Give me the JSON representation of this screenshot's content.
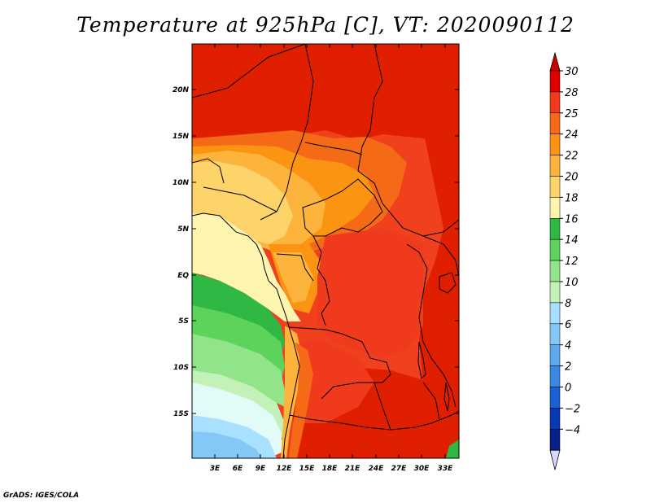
{
  "title": "Temperature at 925hPa [C], VT: 2020090112",
  "credit": "GrADS: IGES/COLA",
  "map": {
    "lat_labels": [
      "20N",
      "15N",
      "10N",
      "5N",
      "EQ",
      "5S",
      "10S",
      "15S"
    ],
    "lon_labels": [
      "3E",
      "6E",
      "9E",
      "12E",
      "15E",
      "18E",
      "21E",
      "24E",
      "27E",
      "30E",
      "33E"
    ]
  },
  "colorbar": {
    "levels": [
      "30",
      "28",
      "25",
      "24",
      "22",
      "20",
      "18",
      "16",
      "14",
      "12",
      "10",
      "8",
      "6",
      "4",
      "2",
      "0",
      "−2",
      "−4"
    ],
    "colors": [
      "#e00000",
      "#f03a1e",
      "#f56a16",
      "#fa9412",
      "#fcb43c",
      "#fdd46a",
      "#fef6b0",
      "#2fb843",
      "#5ed35c",
      "#92e48a",
      "#c3f2b8",
      "#a8e0ff",
      "#84c8f8",
      "#5ea8ee",
      "#3a88e2",
      "#1860d4",
      "#0838b4",
      "#082088",
      "#080050"
    ],
    "top_color": "#cc0000",
    "bottom_color": "#d8d8f8"
  }
}
